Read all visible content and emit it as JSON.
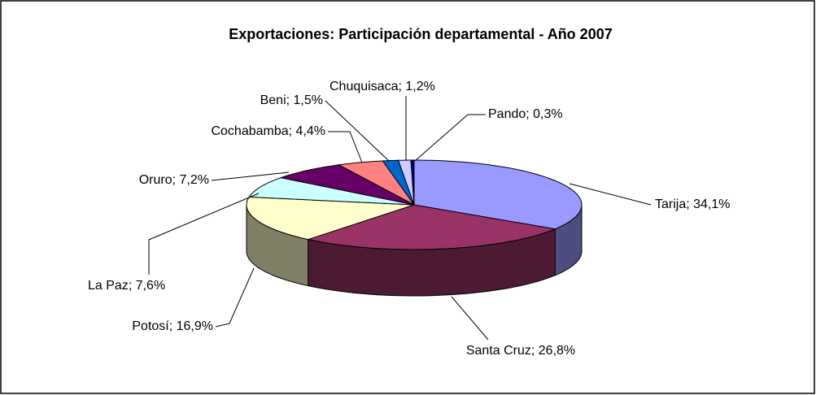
{
  "chart_data": {
    "type": "pie3d",
    "title": "Exportaciones: Participación departamental - Año 2007",
    "values": [
      34.1,
      26.8,
      16.9,
      7.6,
      7.2,
      4.4,
      1.5,
      1.2,
      0.3
    ],
    "value_labels": [
      "Tarija; 34,1%",
      "Santa Cruz; 26,8%",
      "Potosí; 16,9%",
      "La Paz; 7,6%",
      "Oruro; 7,2%",
      "Cochabamba; 4,4%",
      "Beni; 1,5%",
      "Chuquisaca; 1,2%",
      "Pando; 0,3%"
    ],
    "colors": [
      "#9999ff",
      "#993366",
      "#ffffcc",
      "#ccffff",
      "#660066",
      "#ff8080",
      "#0066cc",
      "#ccccff",
      "#000080"
    ]
  }
}
